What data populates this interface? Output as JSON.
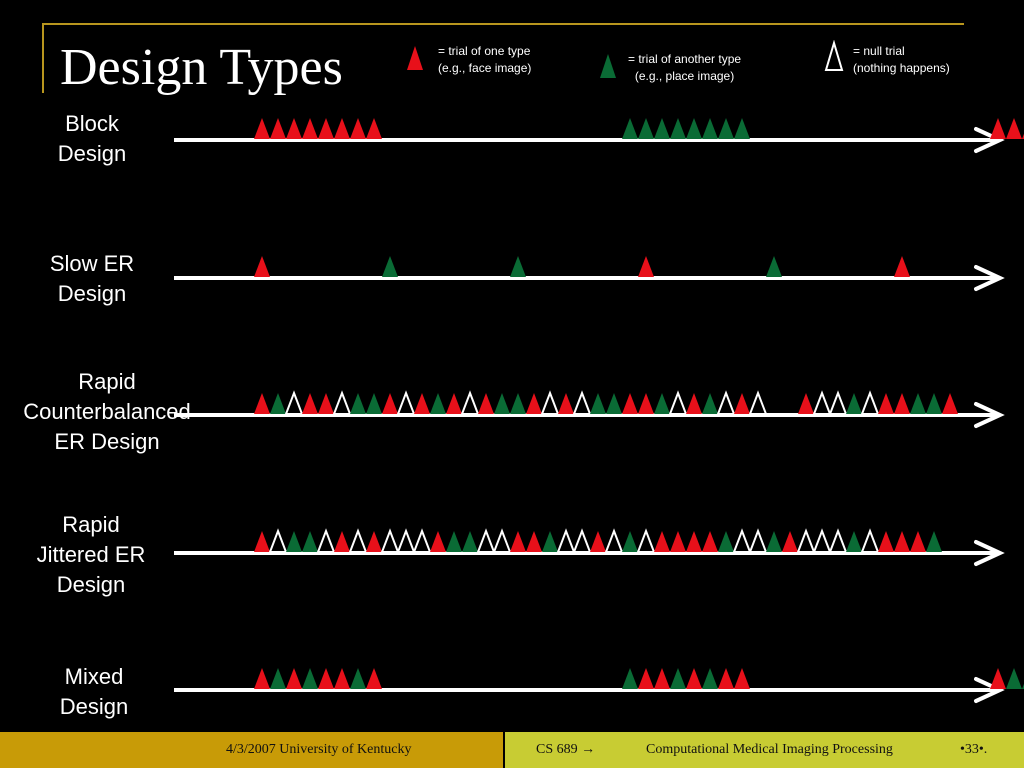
{
  "title": "Design Types",
  "colors": {
    "red": "#e8101a",
    "green": "#0a6b35",
    "null": "#000000",
    "line": "#ffffff",
    "gold": "#c89b07",
    "olive": "#c8cc33"
  },
  "legend": [
    {
      "icon": "red-triangle-icon",
      "line1": "= trial of one type",
      "line2": "(e.g., face image)"
    },
    {
      "icon": "green-triangle-icon",
      "line1": "= trial of another type",
      "line2": "(e.g., place image)"
    },
    {
      "icon": "null-triangle-icon",
      "line1": "= null trial",
      "line2": "(nothing happens)"
    }
  ],
  "rows": [
    {
      "name": "block",
      "label_lines": [
        "Block",
        "Design"
      ],
      "sequence": "RRRRRRRR...............GGGGGGGG...............RRRRRRRR"
    },
    {
      "name": "slow-er",
      "label_lines": [
        "Slow ER",
        "Design"
      ],
      "sequence": "R.......G.......G.......R.......G.......R"
    },
    {
      "name": "rapid-counterbalanced",
      "label_lines": [
        "Rapid",
        "Counterbalanced",
        "ER Design"
      ],
      "sequence": "RGNRRNGGRNRGRNRGGRNRNGGRRGNRGNRN..RNNGNRRGGR"
    },
    {
      "name": "rapid-jittered",
      "label_lines": [
        "Rapid",
        "Jittered ER",
        "Design"
      ],
      "sequence": "RNGGNRNRNNNRGGNNRRGNNRNGNRRRRGNNGRNNNGNRRRG"
    },
    {
      "name": "mixed",
      "label_lines": [
        "Mixed",
        "Design"
      ],
      "sequence": "RGRGRRGR...............GRRGRGRR...............RGGGRRGG"
    }
  ],
  "footer": {
    "date_org": "4/3/2007   University of Kentucky",
    "course": "CS 689 →",
    "course_title": "Computational Medical Imaging Processing",
    "page": "•33•."
  }
}
